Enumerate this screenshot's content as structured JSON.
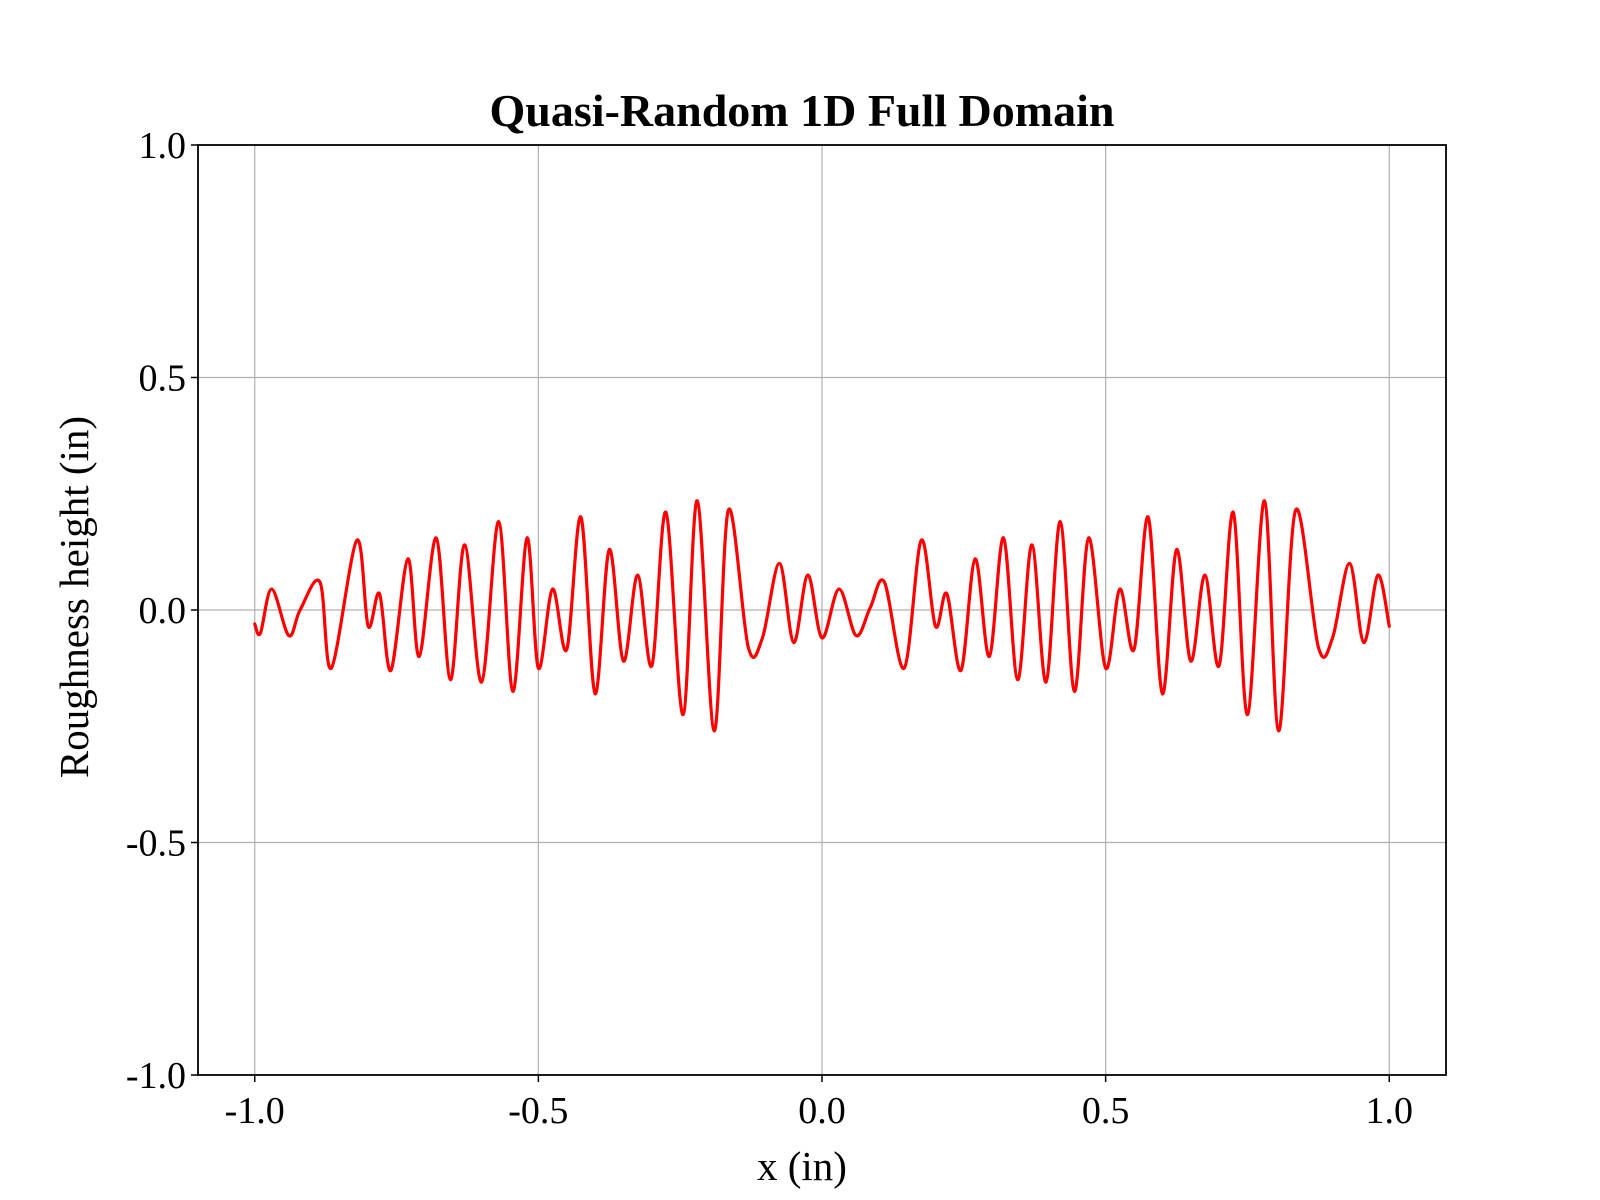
{
  "chart_data": {
    "type": "line",
    "title": "Quasi-Random 1D Full Domain",
    "xlabel": "x (in)",
    "ylabel": "Roughness height (in)",
    "xlim": [
      -1.1,
      1.1
    ],
    "ylim": [
      -1.0,
      1.0
    ],
    "xticks": [
      -1.0,
      -0.5,
      0.0,
      0.5,
      1.0
    ],
    "xtick_labels": [
      "-1.0",
      "-0.5",
      "0.0",
      "0.5",
      "1.0"
    ],
    "yticks": [
      -1.0,
      -0.5,
      0.0,
      0.5,
      1.0
    ],
    "ytick_labels": [
      "-1.0",
      "-0.5",
      "0.0",
      "0.5",
      "1.0"
    ],
    "grid": true,
    "series": [
      {
        "color": "#ff0000",
        "x": [
          -1.0,
          -0.99,
          -0.97,
          -0.94,
          -0.92,
          -0.885,
          -0.865,
          -0.82,
          -0.8,
          -0.78,
          -0.76,
          -0.73,
          -0.71,
          -0.68,
          -0.655,
          -0.63,
          -0.6,
          -0.57,
          -0.545,
          -0.52,
          -0.5,
          -0.475,
          -0.45,
          -0.425,
          -0.4,
          -0.375,
          -0.35,
          -0.325,
          -0.3,
          -0.275,
          -0.245,
          -0.22,
          -0.19,
          -0.165,
          -0.13,
          -0.105,
          -0.075,
          -0.05,
          -0.025,
          0.0,
          0.03,
          0.06,
          0.085,
          0.11,
          0.145,
          0.175,
          0.2,
          0.22,
          0.245,
          0.27,
          0.295,
          0.32,
          0.345,
          0.37,
          0.395,
          0.42,
          0.445,
          0.47,
          0.5,
          0.525,
          0.55,
          0.575,
          0.6,
          0.625,
          0.65,
          0.675,
          0.7,
          0.725,
          0.75,
          0.78,
          0.805,
          0.835,
          0.875,
          0.9,
          0.93,
          0.955,
          0.98,
          1.0
        ],
        "y": [
          -0.03,
          -0.05,
          0.045,
          -0.055,
          0.0,
          0.06,
          -0.125,
          0.15,
          -0.035,
          0.035,
          -0.13,
          0.11,
          -0.1,
          0.155,
          -0.15,
          0.14,
          -0.155,
          0.19,
          -0.175,
          0.155,
          -0.125,
          0.045,
          -0.085,
          0.2,
          -0.18,
          0.13,
          -0.11,
          0.075,
          -0.12,
          0.21,
          -0.225,
          0.235,
          -0.26,
          0.215,
          -0.08,
          -0.06,
          0.1,
          -0.07,
          0.075,
          -0.06,
          0.045,
          -0.055,
          0.005,
          0.06,
          -0.125,
          0.15,
          -0.035,
          0.035,
          -0.13,
          0.11,
          -0.1,
          0.155,
          -0.15,
          0.14,
          -0.155,
          0.19,
          -0.175,
          0.155,
          -0.125,
          0.045,
          -0.085,
          0.2,
          -0.18,
          0.13,
          -0.11,
          0.075,
          -0.12,
          0.21,
          -0.225,
          0.235,
          -0.26,
          0.215,
          -0.08,
          -0.06,
          0.1,
          -0.07,
          0.075,
          -0.035
        ]
      }
    ]
  }
}
